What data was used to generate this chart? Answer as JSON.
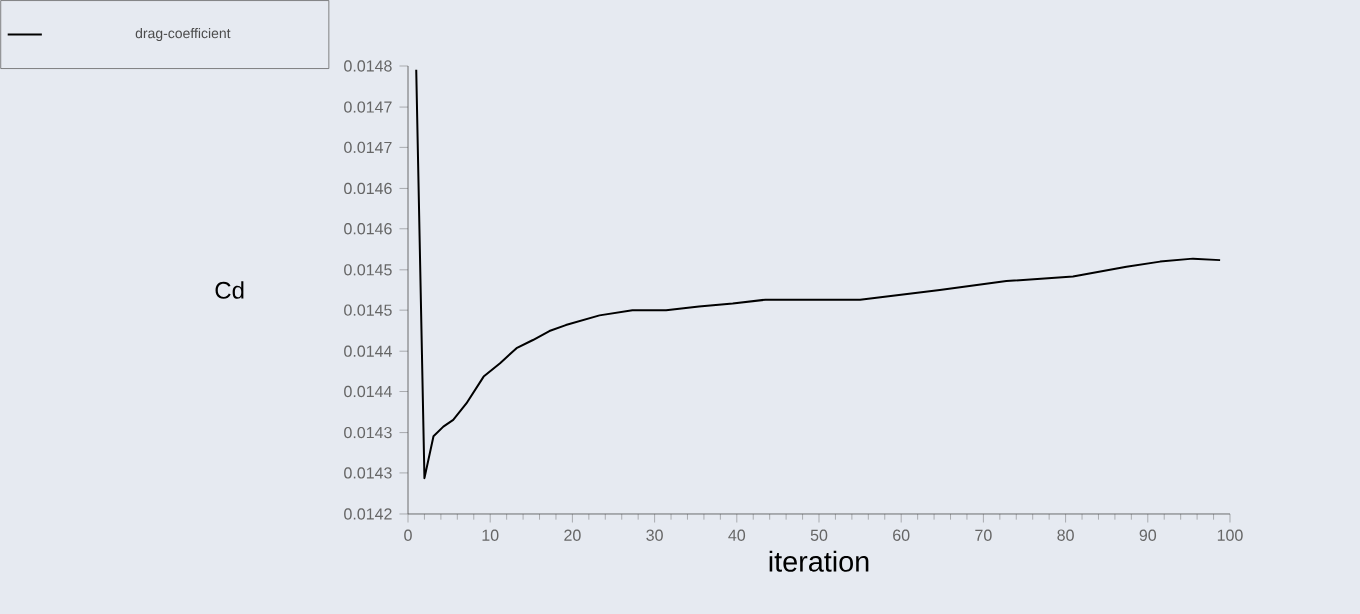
{
  "chart_data": {
    "type": "line",
    "xlabel": "iteration",
    "ylabel": "Cd",
    "legend": "top left",
    "grid": false,
    "marker": "none",
    "line_style": "solid",
    "xlim": [
      0,
      100
    ],
    "xticks": [
      0,
      10,
      20,
      30,
      40,
      50,
      60,
      70,
      80,
      90,
      100
    ],
    "ylim": [
      0.0142,
      0.0148
    ],
    "yticks": [
      0.0142,
      {
        "value": 0.014255,
        "label": "0.0143"
      },
      {
        "value": 0.014309,
        "label": "0.0143"
      },
      {
        "value": 0.014364,
        "label": "0.0144"
      },
      {
        "value": 0.014418,
        "label": "0.0144"
      },
      {
        "value": 0.014473,
        "label": "0.0145"
      },
      {
        "value": 0.014527,
        "label": "0.0145"
      },
      {
        "value": 0.014582,
        "label": "0.0146"
      },
      {
        "value": 0.014636,
        "label": "0.0146"
      },
      {
        "value": 0.014691,
        "label": "0.0147"
      },
      {
        "value": 0.014745,
        "label": "0.0147"
      },
      0.0148
    ],
    "series": [
      {
        "name": "drag-coefficient",
        "color": "#000000",
        "x": [
          1,
          2,
          3.1,
          4.3,
          5.5,
          7.1,
          9.2,
          11.2,
          13.2,
          15.2,
          17.2,
          19.2,
          23.3,
          27.3,
          31.4,
          35.4,
          39.5,
          43.5,
          47.6,
          55,
          64.7,
          72.8,
          80.9,
          87.4,
          91.5,
          95.5,
          98.8
        ],
        "values": [
          0.014795,
          0.014248,
          0.014304,
          0.014317,
          0.014326,
          0.014348,
          0.014384,
          0.014402,
          0.014422,
          0.014433,
          0.014445,
          0.014453,
          0.014466,
          0.014473,
          0.014473,
          0.014478,
          0.014482,
          0.014487,
          0.014487,
          0.014487,
          0.0145,
          0.014512,
          0.014518,
          0.014531,
          0.014538,
          0.014542,
          0.01454
        ]
      }
    ]
  }
}
